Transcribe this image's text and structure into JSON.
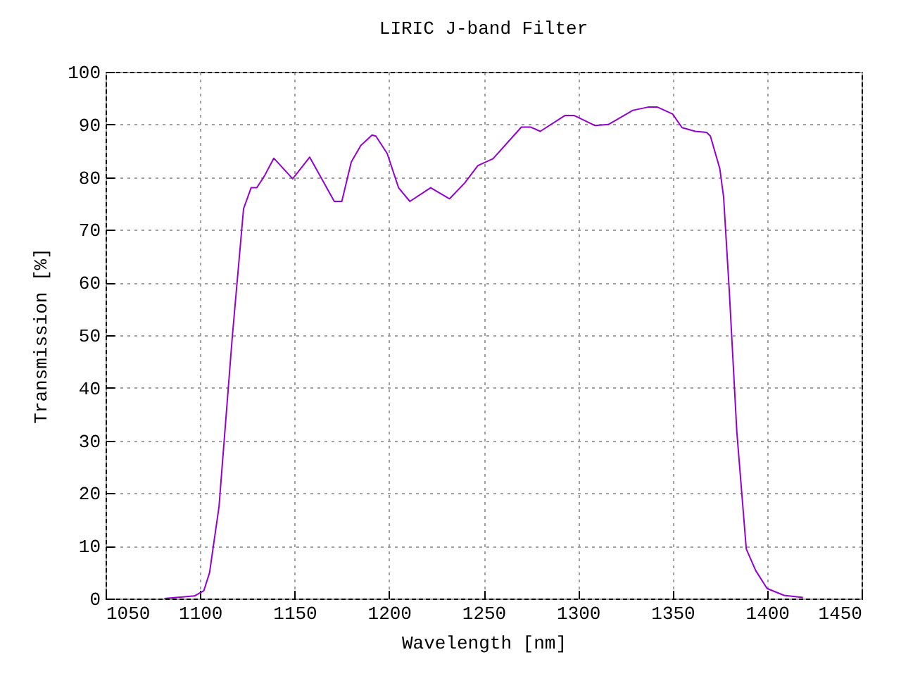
{
  "chart_data": {
    "type": "line",
    "title": "LIRIC J-band Filter",
    "xlabel": "Wavelength [nm]",
    "ylabel": "Transmission [%]",
    "x": [
      1081,
      1097,
      1102,
      1105,
      1110,
      1117,
      1123,
      1127,
      1130,
      1134,
      1139,
      1149,
      1158,
      1171,
      1175,
      1180,
      1185,
      1191,
      1193,
      1199,
      1205,
      1211,
      1222,
      1232,
      1240,
      1247,
      1255,
      1270,
      1275,
      1280,
      1293,
      1298,
      1309,
      1316,
      1329,
      1337,
      1342,
      1350,
      1355,
      1362,
      1368,
      1370,
      1375,
      1377,
      1380,
      1384,
      1389,
      1394,
      1400,
      1409,
      1419
    ],
    "series": [
      {
        "color": "#9400d3",
        "values": [
          0,
          0.5,
          1.5,
          4.9,
          17.4,
          49.5,
          74,
          78,
          78,
          80.2,
          83.6,
          79.7,
          83.8,
          75.4,
          75.4,
          82.9,
          86,
          88,
          87.8,
          84.5,
          78,
          75.4,
          78,
          75.9,
          78.9,
          82.2,
          83.5,
          89.5,
          89.5,
          88.7,
          91.7,
          91.7,
          89.8,
          90,
          92.7,
          93.3,
          93.3,
          92,
          89.4,
          88.7,
          88.5,
          87.8,
          81.6,
          76.2,
          58.4,
          31.6,
          9.4,
          5.3,
          1.9,
          0.6,
          0.2
        ]
      }
    ],
    "xlim": [
      1050,
      1450
    ],
    "xticks": [
      1050,
      1100,
      1150,
      1200,
      1250,
      1300,
      1350,
      1400,
      1450
    ],
    "ylim": [
      0,
      100
    ],
    "yticks": [
      0,
      10,
      20,
      30,
      40,
      50,
      60,
      70,
      80,
      90,
      100
    ],
    "grid": true,
    "line_style": "solid"
  }
}
